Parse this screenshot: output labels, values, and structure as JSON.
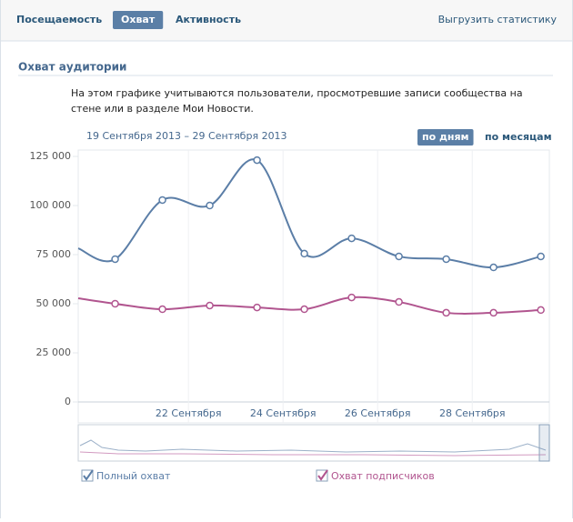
{
  "tabs": [
    "Посещаемость",
    "Охват",
    "Активность"
  ],
  "active_tab": 1,
  "export_link": "Выгрузить статистику",
  "section_title": "Охват аудитории",
  "description": "На этом графике учитываются пользователи, просмотревшие записи сообщества на стене или в разделе Мои Новости.",
  "date_range": "19 Сентября 2013 – 29 Сентября 2013",
  "period_buttons": [
    "по дням",
    "по месяцам"
  ],
  "active_period": 0,
  "chart_data": {
    "type": "line",
    "x": [
      19.67,
      20.45,
      21.45,
      22.45,
      23.45,
      24.45,
      25.45,
      26.45,
      27.45,
      28.45,
      29.45
    ],
    "xlim": [
      19.67,
      29.63
    ],
    "xticks": [
      {
        "value": 22,
        "label": "22 Сентября"
      },
      {
        "value": 24,
        "label": "24 Сентября"
      },
      {
        "value": 26,
        "label": "26 Сентября"
      },
      {
        "value": 28,
        "label": "28 Сентября"
      }
    ],
    "ylim": [
      0,
      125000
    ],
    "yticks": [
      {
        "value": 0,
        "label": "0"
      },
      {
        "value": 25000,
        "label": "25 000"
      },
      {
        "value": 50000,
        "label": "50 000"
      },
      {
        "value": 75000,
        "label": "75 000"
      },
      {
        "value": 100000,
        "label": "100 000"
      },
      {
        "value": 125000,
        "label": "125 000"
      }
    ],
    "series": [
      {
        "name": "Полный охват",
        "color": "#5b7ea7",
        "values": [
          78200,
          72700,
          102800,
          100000,
          123100,
          75500,
          83300,
          74100,
          72700,
          68500,
          74100
        ]
      },
      {
        "name": "Охват подписчиков",
        "color": "#b1558f",
        "values": [
          52800,
          50000,
          47200,
          49100,
          48100,
          47200,
          53200,
          50900,
          45400,
          45400,
          46800
        ]
      }
    ]
  }
}
